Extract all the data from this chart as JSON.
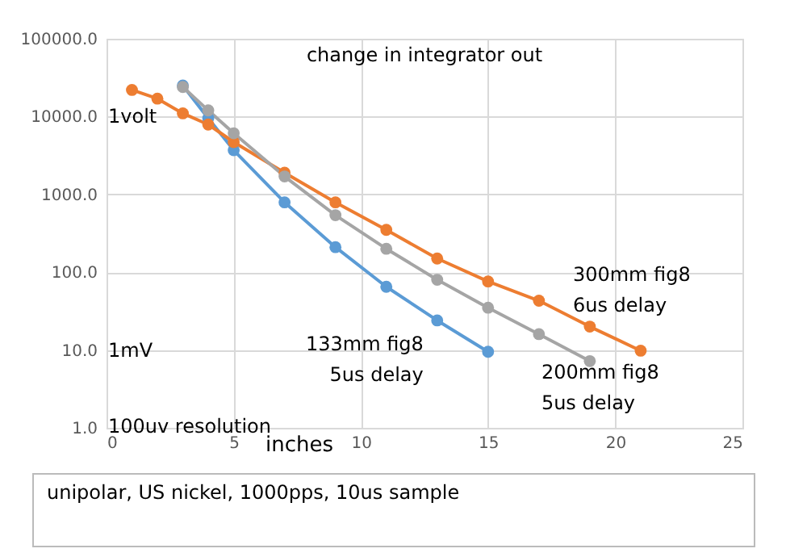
{
  "chart_data": {
    "type": "line",
    "title": "change in integrator out",
    "xlabel": "inches",
    "xlim": [
      0,
      25
    ],
    "xticks": [
      0,
      5,
      10,
      15,
      20,
      25
    ],
    "ylim": [
      1,
      100000
    ],
    "yticks": [
      {
        "value": 1,
        "label": "1.0"
      },
      {
        "value": 10,
        "label": "10.0"
      },
      {
        "value": 100,
        "label": "100.0"
      },
      {
        "value": 1000,
        "label": "1000.0"
      },
      {
        "value": 10000,
        "label": "10000.0"
      },
      {
        "value": 100000,
        "label": "100000.0"
      }
    ],
    "log": "y",
    "grid": true,
    "legend": false,
    "marker": "circle",
    "series": [
      {
        "name": "133mm fig8\n5us delay",
        "color": "#5b9bd5",
        "x": [
          3,
          4,
          5,
          7,
          9,
          11,
          13,
          15
        ],
        "values": [
          25000,
          9500,
          3700,
          790,
          210,
          65,
          24,
          9.5
        ]
      },
      {
        "name": "300mm fig8\n6us delay",
        "color": "#ed7d31",
        "x": [
          1,
          2,
          3,
          4,
          5,
          7,
          9,
          11,
          13,
          15,
          17,
          19,
          21
        ],
        "values": [
          22000,
          17000,
          11000,
          7900,
          4700,
          1900,
          790,
          350,
          150,
          76,
          43,
          20,
          9.8
        ]
      },
      {
        "name": "200mm fig8\n5us delay",
        "color": "#a5a5a5",
        "x": [
          3,
          4,
          5,
          7,
          9,
          11,
          13,
          15,
          17,
          19
        ],
        "values": [
          24000,
          12000,
          6100,
          1700,
          540,
          200,
          80,
          35,
          16,
          7.2
        ]
      }
    ],
    "annotations": [
      "1volt",
      "1mV",
      "100uv resolution",
      "unipolar, US nickel, 1000pps, 10us sample"
    ]
  }
}
